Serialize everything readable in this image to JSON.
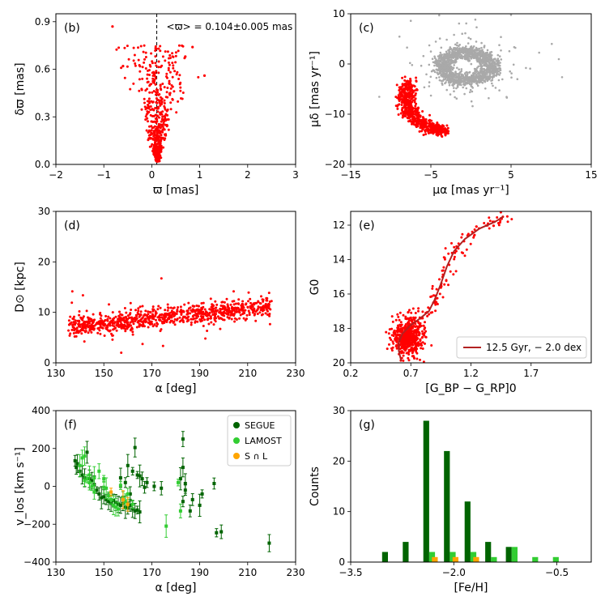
{
  "figure": {
    "colors": {
      "member": "#ff0000",
      "field": "#a9a9a9",
      "isochrone": "#b22222",
      "segue": "#006400",
      "lamost": "#32cd32",
      "overlap": "#ffa500"
    }
  },
  "chart_data": [
    {
      "id": "b",
      "panel_label": "(b)",
      "type": "scatter",
      "xlim": [
        -2,
        3
      ],
      "ylim": [
        0,
        0.95
      ],
      "xticks": [
        -2,
        -1,
        0,
        1,
        2,
        3
      ],
      "xtick_labels": [
        "−2",
        "−1",
        "0",
        "1",
        "2",
        "3"
      ],
      "yticks": [
        0.0,
        0.3,
        0.6,
        0.9
      ],
      "ytick_labels": [
        "0.0",
        "0.3",
        "0.6",
        "0.9"
      ],
      "xlabel": "ϖ [mas]",
      "ylabel": "δϖ [mas]",
      "mean_line_x": 0.104,
      "annotation": "<ϖ> = 0.104±0.005 mas",
      "scatter_model": {
        "n": 720,
        "x_center": 0.12,
        "x_spread_per_err": 1.0,
        "err_range": [
          0.02,
          0.75
        ]
      },
      "outliers": [
        [
          -0.82,
          0.87
        ],
        [
          0.85,
          0.74
        ],
        [
          1.1,
          0.56
        ],
        [
          -0.6,
          0.62
        ],
        [
          0.7,
          0.68
        ]
      ]
    },
    {
      "id": "c",
      "panel_label": "(c)",
      "type": "scatter",
      "xlim": [
        -15,
        15
      ],
      "ylim": [
        -20,
        10
      ],
      "xticks": [
        -15,
        -5,
        5,
        15
      ],
      "xtick_labels": [
        "−15",
        "−5",
        "5",
        "15"
      ],
      "yticks": [
        -20,
        -10,
        0,
        10
      ],
      "ytick_labels": [
        "−20",
        "−10",
        "0",
        "10"
      ],
      "xlabel": "μα [mas yr⁻¹]",
      "ylabel": "μδ [mas yr⁻¹]",
      "field_model": {
        "n": 1500,
        "center": [
          -0.5,
          -0.5
        ],
        "inner_hole": [
          1.9,
          1.3
        ],
        "outer": [
          3.8,
          3.6
        ]
      },
      "stream_arc": {
        "n": 650,
        "points": [
          [
            -7.8,
            -3.5
          ],
          [
            -8.2,
            -6.0
          ],
          [
            -8.0,
            -8.5
          ],
          [
            -7.2,
            -10.5
          ],
          [
            -6.0,
            -12.0
          ],
          [
            -4.5,
            -13.0
          ],
          [
            -3.5,
            -13.3
          ]
        ]
      }
    },
    {
      "id": "d",
      "panel_label": "(d)",
      "type": "scatter",
      "xlim": [
        130,
        230
      ],
      "ylim": [
        0,
        30
      ],
      "xticks": [
        130,
        150,
        170,
        190,
        210,
        230
      ],
      "xtick_labels": [
        "130",
        "150",
        "170",
        "190",
        "210",
        "230"
      ],
      "yticks": [
        0,
        10,
        20,
        30
      ],
      "ytick_labels": [
        "0",
        "10",
        "20",
        "30"
      ],
      "xlabel": "α [deg]",
      "ylabel": "D⊙ [kpc]",
      "trend": {
        "n": 900,
        "alpha_range": [
          135,
          220
        ],
        "D_at_start": 7.0,
        "slope_per_deg": 0.05,
        "spread": 1.3
      }
    },
    {
      "id": "e",
      "panel_label": "(e)",
      "type": "scatter",
      "xlim": [
        0.2,
        2.2
      ],
      "ylim": [
        20,
        11.2
      ],
      "xticks": [
        0.2,
        0.7,
        1.2,
        1.7
      ],
      "xtick_labels": [
        "0.2",
        "0.7",
        "1.2",
        "1.7"
      ],
      "yticks": [
        12,
        14,
        16,
        18,
        20
      ],
      "ytick_labels": [
        "12",
        "14",
        "16",
        "18",
        "20"
      ],
      "xlabel": "[G_BP − G_RP]0",
      "ylabel": "G0",
      "legend": "12.5 Gyr, − 2.0 dex",
      "isochrone": [
        [
          0.62,
          19.9
        ],
        [
          0.6,
          19.3
        ],
        [
          0.6,
          18.8
        ],
        [
          0.63,
          18.3
        ],
        [
          0.7,
          17.8
        ],
        [
          0.78,
          17.4
        ],
        [
          0.85,
          17.0
        ],
        [
          0.9,
          16.3
        ],
        [
          0.95,
          15.4
        ],
        [
          1.0,
          14.4
        ],
        [
          1.06,
          13.5
        ],
        [
          1.15,
          12.8
        ],
        [
          1.27,
          12.2
        ],
        [
          1.4,
          11.8
        ],
        [
          1.47,
          11.5
        ]
      ],
      "turnoff_blob": {
        "n": 480,
        "center": [
          0.68,
          18.5
        ],
        "spread": [
          0.07,
          0.55
        ]
      },
      "rgb_stars": 130
    },
    {
      "id": "f",
      "panel_label": "(f)",
      "type": "scatter",
      "xlim": [
        130,
        230
      ],
      "ylim": [
        -400,
        400
      ],
      "xticks": [
        130,
        150,
        170,
        190,
        210,
        230
      ],
      "xtick_labels": [
        "130",
        "150",
        "170",
        "190",
        "210",
        "230"
      ],
      "yticks": [
        -400,
        -200,
        0,
        200,
        400
      ],
      "ytick_labels": [
        "−400",
        "−200",
        "0",
        "200",
        "400"
      ],
      "xlabel": "α [deg]",
      "ylabel": "v_los [km s⁻¹]",
      "legend": [
        "SEGUE",
        "LAMOST",
        "S ∩ L"
      ],
      "series": [
        {
          "name": "SEGUE",
          "color_key": "segue",
          "points": [
            [
              138,
              135
            ],
            [
              139,
              120
            ],
            [
              138.5,
              100
            ],
            [
              140,
              80
            ],
            [
              141,
              60
            ],
            [
              142,
              45
            ],
            [
              143,
              180
            ],
            [
              144,
              40
            ],
            [
              145,
              30
            ],
            [
              146,
              10
            ],
            [
              147,
              -20
            ],
            [
              148,
              -40
            ],
            [
              149,
              -60
            ],
            [
              150,
              -55
            ],
            [
              151,
              -70
            ],
            [
              152,
              -80
            ],
            [
              153,
              -90
            ],
            [
              154,
              -75
            ],
            [
              155,
              -85
            ],
            [
              156,
              -95
            ],
            [
              157,
              -100
            ],
            [
              158,
              -90
            ],
            [
              159,
              -110
            ],
            [
              160,
              -115
            ],
            [
              161,
              -100
            ],
            [
              162,
              -120
            ],
            [
              163,
              -130
            ],
            [
              164,
              -125
            ],
            [
              165,
              -135
            ],
            [
              160,
              110
            ],
            [
              162,
              80
            ],
            [
              164,
              60
            ],
            [
              163,
              205
            ],
            [
              166,
              40
            ],
            [
              168,
              20
            ],
            [
              171,
              0
            ],
            [
              174,
              -10
            ],
            [
              183,
              250
            ],
            [
              183,
              100
            ],
            [
              182,
              40
            ],
            [
              184,
              -20
            ],
            [
              183,
              -80
            ],
            [
              186,
              -130
            ],
            [
              187,
              -70
            ],
            [
              190,
              -100
            ],
            [
              191,
              -40
            ],
            [
              196,
              15
            ],
            [
              197,
              -245
            ],
            [
              199,
              -240
            ],
            [
              219,
              -300
            ],
            [
              157,
              45
            ],
            [
              159,
              20
            ],
            [
              161,
              -40
            ],
            [
              165,
              55
            ],
            [
              167,
              -5
            ],
            [
              184,
              15
            ]
          ]
        },
        {
          "name": "LAMOST",
          "color_key": "lamost",
          "points": [
            [
              140,
              110
            ],
            [
              141,
              150
            ],
            [
              142,
              160
            ],
            [
              142,
              30
            ],
            [
              143,
              40
            ],
            [
              144,
              20
            ],
            [
              145,
              0
            ],
            [
              146,
              -30
            ],
            [
              148,
              80
            ],
            [
              150,
              40
            ],
            [
              151,
              -10
            ],
            [
              152,
              -50
            ],
            [
              153,
              -70
            ],
            [
              154,
              -100
            ],
            [
              155,
              -110
            ],
            [
              156,
              -120
            ],
            [
              158,
              -60
            ],
            [
              159,
              -80
            ],
            [
              160,
              -40
            ],
            [
              162,
              -95
            ],
            [
              176,
              -210
            ],
            [
              181,
              20
            ],
            [
              182,
              -130
            ],
            [
              144,
              60
            ],
            [
              146,
              45
            ],
            [
              157,
              5
            ],
            [
              150,
              -5
            ]
          ]
        },
        {
          "name": "S ∩ L",
          "color_key": "overlap",
          "points": [
            [
              153,
              -30
            ],
            [
              158,
              -70
            ],
            [
              160,
              -95
            ]
          ]
        }
      ]
    },
    {
      "id": "g",
      "panel_label": "(g)",
      "type": "bar",
      "xlim": [
        -3.5,
        0
      ],
      "ylim": [
        0,
        30
      ],
      "xticks": [
        -3.5,
        -2.0,
        -0.5
      ],
      "xtick_labels": [
        "−3.5",
        "−2.0",
        "−0.5"
      ],
      "yticks": [
        0,
        10,
        20,
        30
      ],
      "ytick_labels": [
        "0",
        "10",
        "20",
        "30"
      ],
      "xlabel": "[Fe/H]",
      "ylabel": "Counts",
      "bin_centers": [
        -3.25,
        -2.95,
        -2.65,
        -2.35,
        -2.05,
        -1.75,
        -1.45,
        -1.15,
        -0.85,
        -0.55
      ],
      "series": [
        {
          "name": "SEGUE",
          "color_key": "segue",
          "values": [
            0,
            2,
            4,
            28,
            22,
            12,
            4,
            3,
            0,
            0
          ]
        },
        {
          "name": "LAMOST",
          "color_key": "lamost",
          "values": [
            0,
            0,
            0,
            2,
            2,
            2,
            1,
            3,
            1,
            1
          ]
        },
        {
          "name": "S ∩ L",
          "color_key": "overlap",
          "values": [
            0,
            0,
            0,
            1,
            1,
            1,
            0,
            0,
            0,
            0
          ]
        }
      ]
    }
  ]
}
